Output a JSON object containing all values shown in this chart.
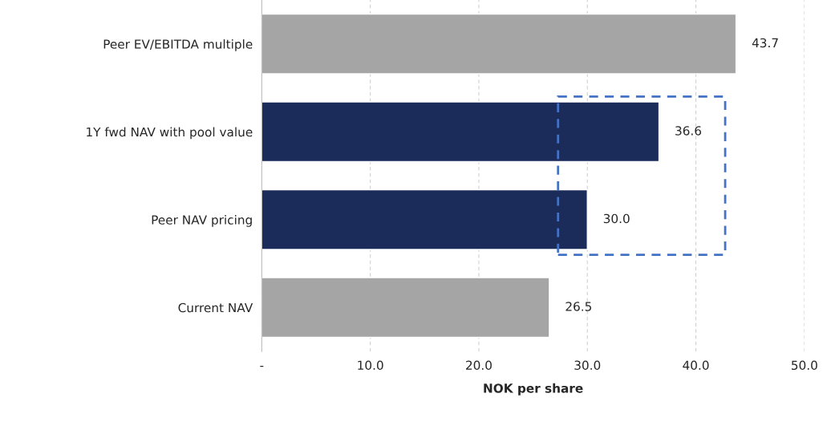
{
  "chart_data": {
    "type": "bar",
    "orientation": "horizontal",
    "xlabel": "NOK per share",
    "categories": [
      "Peer EV/EBITDA multiple",
      "1Y fwd NAV with pool value",
      "Peer NAV pricing",
      "Current NAV"
    ],
    "values": [
      43.7,
      36.6,
      30.0,
      26.5
    ],
    "colors": [
      "#a5a5a5",
      "#1b2b5a",
      "#1b2b5a",
      "#a5a5a5"
    ],
    "value_labels": [
      "43.7",
      "36.6",
      "30.0",
      "26.5"
    ],
    "xlim": [
      0,
      50
    ],
    "xticks": [
      {
        "value": 0,
        "label": "-"
      },
      {
        "value": 10,
        "label": "10.0"
      },
      {
        "value": 20,
        "label": "20.0"
      },
      {
        "value": 30,
        "label": "30.0"
      },
      {
        "value": 40,
        "label": "40.0"
      },
      {
        "value": 50,
        "label": "50.0"
      }
    ],
    "grid": "x"
  }
}
